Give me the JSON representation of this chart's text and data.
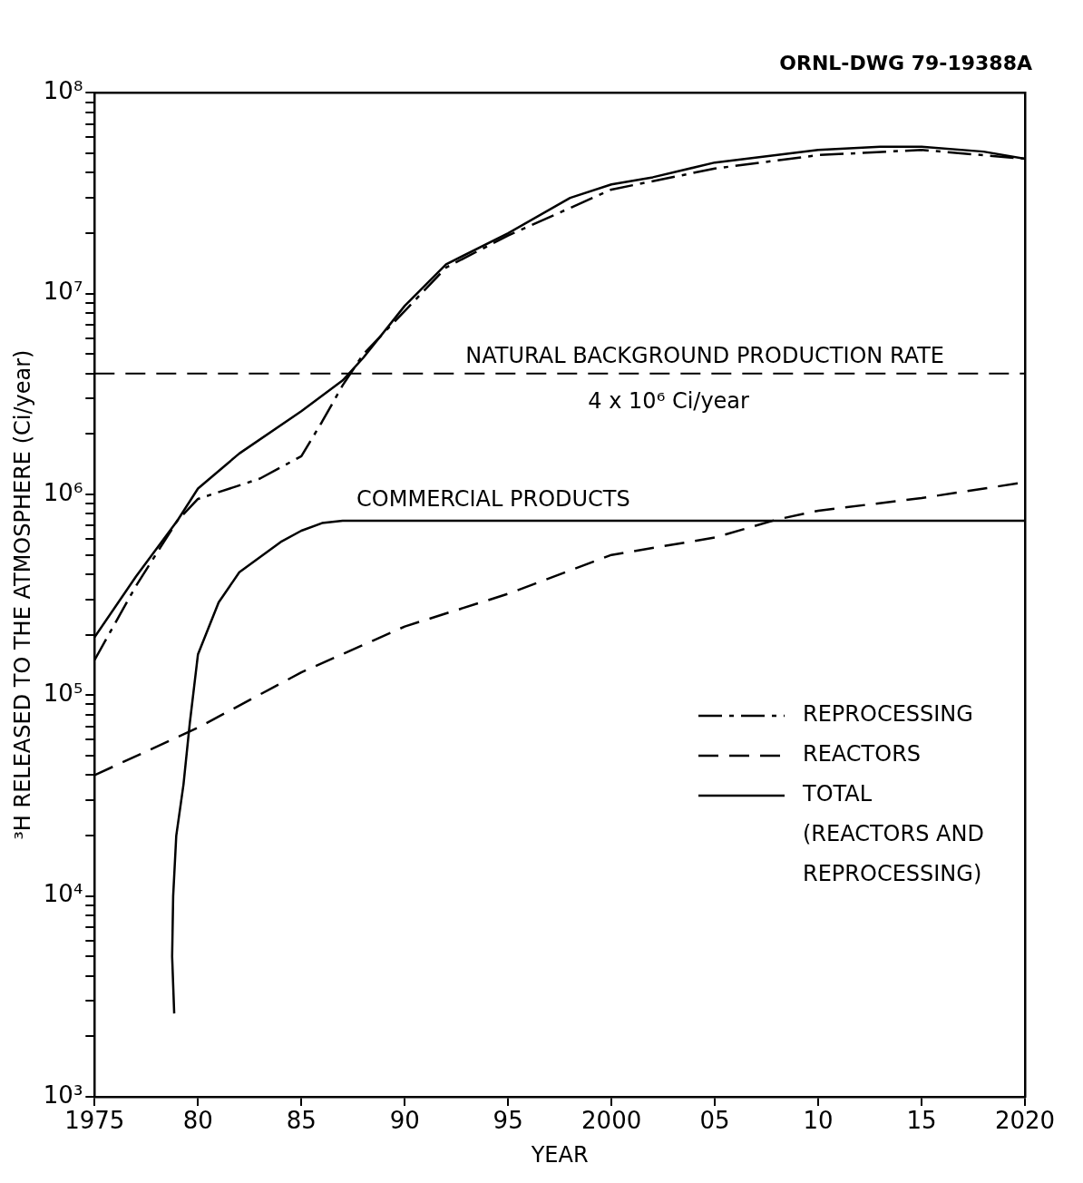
{
  "chart_data": {
    "type": "line",
    "xlabel": "YEAR",
    "ylabel": "³H RELEASED TO THE ATMOSPHERE (Ci/year)",
    "annotations": [
      "ORNL-DWG 79-19388A"
    ],
    "xlim": [
      1975,
      2020
    ],
    "xticks": [
      1975,
      {
        "value": 1980,
        "label": "80"
      },
      {
        "value": 1985,
        "label": "85"
      },
      {
        "value": 1990,
        "label": "90"
      },
      {
        "value": 1995,
        "label": "95"
      },
      2000,
      {
        "value": 2005,
        "label": "05"
      },
      {
        "value": 2010,
        "label": "10"
      },
      {
        "value": 2015,
        "label": "15"
      },
      2020
    ],
    "log": "y",
    "ylim": [
      1000,
      100000000
    ],
    "yticks": [
      {
        "value": 1000,
        "label": "10³"
      },
      {
        "value": 2000,
        "label": null
      },
      {
        "value": 3000,
        "label": null
      },
      {
        "value": 4000,
        "label": null
      },
      {
        "value": 5000,
        "label": null
      },
      {
        "value": 6000,
        "label": null
      },
      {
        "value": 7000,
        "label": null
      },
      {
        "value": 8000,
        "label": null
      },
      {
        "value": 9000,
        "label": null
      },
      {
        "value": 10000,
        "label": "10⁴"
      },
      {
        "value": 20000,
        "label": null
      },
      {
        "value": 30000,
        "label": null
      },
      {
        "value": 40000,
        "label": null
      },
      {
        "value": 50000,
        "label": null
      },
      {
        "value": 60000,
        "label": null
      },
      {
        "value": 70000,
        "label": null
      },
      {
        "value": 80000,
        "label": null
      },
      {
        "value": 90000,
        "label": null
      },
      {
        "value": 100000,
        "label": "10⁵"
      },
      {
        "value": 200000,
        "label": null
      },
      {
        "value": 300000,
        "label": null
      },
      {
        "value": 400000,
        "label": null
      },
      {
        "value": 500000,
        "label": null
      },
      {
        "value": 600000,
        "label": null
      },
      {
        "value": 700000,
        "label": null
      },
      {
        "value": 800000,
        "label": null
      },
      {
        "value": 900000,
        "label": null
      },
      {
        "value": 1000000,
        "label": "10⁶"
      },
      {
        "value": 2000000,
        "label": null
      },
      {
        "value": 3000000,
        "label": null
      },
      {
        "value": 4000000,
        "label": null
      },
      {
        "value": 5000000,
        "label": null
      },
      {
        "value": 6000000,
        "label": null
      },
      {
        "value": 7000000,
        "label": null
      },
      {
        "value": 8000000,
        "label": null
      },
      {
        "value": 9000000,
        "label": null
      },
      {
        "value": 10000000,
        "label": "10⁷"
      },
      {
        "value": 20000000,
        "label": null
      },
      {
        "value": 30000000,
        "label": null
      },
      {
        "value": 40000000,
        "label": null
      },
      {
        "value": 50000000,
        "label": null
      },
      {
        "value": 60000000,
        "label": null
      },
      {
        "value": 70000000,
        "label": null
      },
      {
        "value": 80000000,
        "label": null
      },
      {
        "value": 90000000,
        "label": null
      },
      {
        "value": 100000000,
        "label": "10⁸"
      }
    ],
    "grid": false,
    "legend": "bottom right",
    "marker": "none",
    "ref_lines": [
      {
        "axis": "y",
        "value": 4000000,
        "label": "NATURAL BACKGROUND PRODUCTION RATE\n4 x 10⁶ Ci/year",
        "color": "#000000",
        "line_style": "dashed"
      }
    ],
    "series": [
      {
        "name": "REPROCESSING",
        "color": "#000000",
        "line_style": "dashdot",
        "x": [
          1975,
          1977,
          1979,
          1980,
          1983,
          1985,
          1986,
          1987,
          1988,
          1990,
          1992,
          1995,
          2000,
          2005,
          2010,
          2015,
          2020
        ],
        "values": [
          150000,
          350000,
          740000,
          950000,
          1200000,
          1550000,
          2300000,
          3500000,
          5000000,
          8200000,
          13500000,
          19500000,
          33000000,
          42000000,
          49000000,
          52000000,
          47000000
        ]
      },
      {
        "name": "REACTORS",
        "color": "#000000",
        "line_style": "dashed",
        "x": [
          1975,
          1980,
          1985,
          1990,
          1995,
          2000,
          2005,
          2008,
          2010,
          2015,
          2020
        ],
        "values": [
          40000,
          69000,
          130000,
          220000,
          320000,
          500000,
          610000,
          750000,
          830000,
          960000,
          1150000
        ]
      },
      {
        "name": "TOTAL\n(REACTORS AND\nREPROCESSING)",
        "color": "#000000",
        "line_style": "solid",
        "x": [
          1975,
          1977,
          1979,
          1980,
          1982,
          1985,
          1987,
          1988,
          1990,
          1992,
          1995,
          1998,
          2000,
          2002,
          2005,
          2010,
          2013,
          2015,
          2018,
          2020
        ],
        "values": [
          195000,
          390000,
          740000,
          1070000,
          1600000,
          2600000,
          3700000,
          4800000,
          8700000,
          14000000,
          20000000,
          30000000,
          35000000,
          38000000,
          45000000,
          52000000,
          54000000,
          54000000,
          51000000,
          47000000
        ]
      },
      {
        "name": "COMMERCIAL PRODUCTS",
        "color": "#000000",
        "line_style": "solid",
        "x": [
          1978.85,
          1978.75,
          1978.8,
          1978.95,
          1979.3,
          1979.6,
          1980,
          1981,
          1982,
          1984,
          1985,
          1986,
          1987,
          2020
        ],
        "values": [
          2600,
          5000,
          10000,
          20000,
          36000,
          72000,
          160000,
          290000,
          410000,
          580000,
          660000,
          720000,
          740000,
          740000
        ]
      }
    ]
  }
}
